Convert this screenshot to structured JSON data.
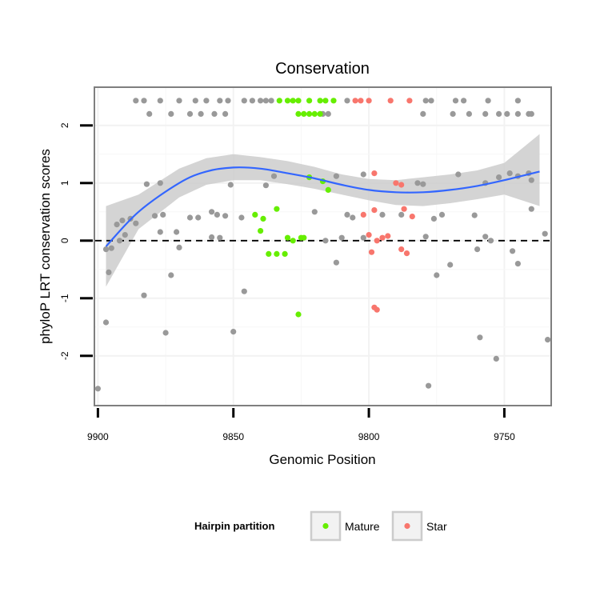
{
  "chart_data": {
    "type": "scatter",
    "title": "Conservation",
    "xlabel": "Genomic Position",
    "ylabel": "phyloP LRT conservation scores",
    "xlim": [
      9901,
      9733
    ],
    "ylim": [
      -2.85,
      2.65
    ],
    "x_reversed": true,
    "x_ticks": [
      9900,
      9850,
      9800,
      9750
    ],
    "y_ticks": [
      -2,
      -1,
      0,
      1,
      2
    ],
    "reference_line": {
      "y": 0,
      "style": "dashed"
    },
    "smooth": {
      "x": [
        9897,
        9885,
        9870,
        9860,
        9850,
        9840,
        9830,
        9820,
        9810,
        9800,
        9790,
        9780,
        9770,
        9760,
        9750,
        9737
      ],
      "y": [
        -0.1,
        0.5,
        1.0,
        1.2,
        1.27,
        1.25,
        1.17,
        1.08,
        0.97,
        0.88,
        0.84,
        0.84,
        0.88,
        0.95,
        1.05,
        1.2
      ],
      "lower": [
        -0.8,
        0.2,
        0.75,
        0.97,
        1.05,
        1.05,
        0.98,
        0.9,
        0.8,
        0.7,
        0.62,
        0.6,
        0.65,
        0.72,
        0.8,
        0.6
      ],
      "upper": [
        0.6,
        0.8,
        1.25,
        1.43,
        1.5,
        1.45,
        1.38,
        1.28,
        1.15,
        1.07,
        1.05,
        1.1,
        1.15,
        1.22,
        1.35,
        1.85
      ],
      "color": "#3366ff",
      "band_color": "#cccccc"
    },
    "series": [
      {
        "name": "",
        "color": "#999999",
        "points": [
          [
            9886,
            2.43
          ],
          [
            9883,
            2.43
          ],
          [
            9877,
            2.43
          ],
          [
            9870,
            2.43
          ],
          [
            9864,
            2.43
          ],
          [
            9860,
            2.43
          ],
          [
            9855,
            2.43
          ],
          [
            9852,
            2.43
          ],
          [
            9846,
            2.43
          ],
          [
            9843,
            2.43
          ],
          [
            9840,
            2.43
          ],
          [
            9838,
            2.43
          ],
          [
            9836,
            2.43
          ],
          [
            9808,
            2.43
          ],
          [
            9779,
            2.43
          ],
          [
            9777,
            2.43
          ],
          [
            9768,
            2.43
          ],
          [
            9765,
            2.43
          ],
          [
            9756,
            2.43
          ],
          [
            9745,
            2.43
          ],
          [
            9881,
            2.2
          ],
          [
            9873,
            2.2
          ],
          [
            9866,
            2.2
          ],
          [
            9862,
            2.2
          ],
          [
            9857,
            2.2
          ],
          [
            9853,
            2.2
          ],
          [
            9817,
            2.2
          ],
          [
            9815,
            2.2
          ],
          [
            9780,
            2.2
          ],
          [
            9769,
            2.2
          ],
          [
            9763,
            2.2
          ],
          [
            9757,
            2.2
          ],
          [
            9752,
            2.2
          ],
          [
            9749,
            2.2
          ],
          [
            9745,
            2.2
          ],
          [
            9741,
            2.2
          ],
          [
            9740,
            2.2
          ],
          [
            9877,
            1.0
          ],
          [
            9882,
            0.98
          ],
          [
            9851,
            0.97
          ],
          [
            9838,
            0.96
          ],
          [
            9812,
            1.12
          ],
          [
            9780,
            0.98
          ],
          [
            9782,
            1.0
          ],
          [
            9767,
            1.15
          ],
          [
            9757,
            1.0
          ],
          [
            9752,
            1.1
          ],
          [
            9748,
            1.17
          ],
          [
            9745,
            1.12
          ],
          [
            9741,
            1.17
          ],
          [
            9740,
            1.05
          ],
          [
            9835,
            1.12
          ],
          [
            9802,
            1.15
          ],
          [
            9891,
            0.35
          ],
          [
            9888,
            0.38
          ],
          [
            9886,
            0.3
          ],
          [
            9893,
            0.28
          ],
          [
            9879,
            0.43
          ],
          [
            9876,
            0.45
          ],
          [
            9866,
            0.4
          ],
          [
            9863,
            0.4
          ],
          [
            9858,
            0.5
          ],
          [
            9856,
            0.45
          ],
          [
            9853,
            0.43
          ],
          [
            9847,
            0.4
          ],
          [
            9820,
            0.5
          ],
          [
            9808,
            0.45
          ],
          [
            9806,
            0.4
          ],
          [
            9795,
            0.45
          ],
          [
            9788,
            0.45
          ],
          [
            9776,
            0.38
          ],
          [
            9773,
            0.45
          ],
          [
            9761,
            0.44
          ],
          [
            9740,
            0.55
          ],
          [
            9890,
            0.1
          ],
          [
            9877,
            0.15
          ],
          [
            9871,
            0.15
          ],
          [
            9858,
            0.06
          ],
          [
            9855,
            0.05
          ],
          [
            9816,
            0.0
          ],
          [
            9810,
            0.05
          ],
          [
            9802,
            0.05
          ],
          [
            9779,
            0.07
          ],
          [
            9757,
            0.07
          ],
          [
            9755,
            0.0
          ],
          [
            9735,
            0.12
          ],
          [
            9892,
            0.0
          ],
          [
            9897,
            -0.15
          ],
          [
            9895,
            -0.13
          ],
          [
            9870,
            -0.12
          ],
          [
            9760,
            -0.15
          ],
          [
            9747,
            -0.18
          ],
          [
            9812,
            -0.38
          ],
          [
            9775,
            -0.6
          ],
          [
            9770,
            -0.42
          ],
          [
            9745,
            -0.4
          ],
          [
            9896,
            -0.55
          ],
          [
            9873,
            -0.6
          ],
          [
            9883,
            -0.95
          ],
          [
            9846,
            -0.88
          ],
          [
            9897,
            -1.42
          ],
          [
            9875,
            -1.6
          ],
          [
            9850,
            -1.58
          ],
          [
            9759,
            -1.68
          ],
          [
            9753,
            -2.05
          ],
          [
            9734,
            -1.72
          ],
          [
            9778,
            -2.52
          ],
          [
            9900,
            -2.57
          ]
        ]
      },
      {
        "name": "Mature",
        "color": "#66ee00",
        "points": [
          [
            9833,
            2.43
          ],
          [
            9830,
            2.43
          ],
          [
            9828,
            2.43
          ],
          [
            9826,
            2.43
          ],
          [
            9822,
            2.43
          ],
          [
            9818,
            2.43
          ],
          [
            9816,
            2.43
          ],
          [
            9813,
            2.43
          ],
          [
            9826,
            2.2
          ],
          [
            9824,
            2.2
          ],
          [
            9822,
            2.2
          ],
          [
            9820,
            2.2
          ],
          [
            9818,
            2.2
          ],
          [
            9822,
            1.1
          ],
          [
            9817,
            1.03
          ],
          [
            9815,
            0.88
          ],
          [
            9834,
            0.55
          ],
          [
            9842,
            0.45
          ],
          [
            9839,
            0.38
          ],
          [
            9840,
            0.17
          ],
          [
            9830,
            0.05
          ],
          [
            9825,
            0.05
          ],
          [
            9824,
            0.05
          ],
          [
            9828,
            0.0
          ],
          [
            9837,
            -0.23
          ],
          [
            9834,
            -0.23
          ],
          [
            9831,
            -0.23
          ],
          [
            9826,
            -1.28
          ]
        ]
      },
      {
        "name": "Star",
        "color": "#f8766d",
        "points": [
          [
            9805,
            2.43
          ],
          [
            9803,
            2.43
          ],
          [
            9800,
            2.43
          ],
          [
            9792,
            2.43
          ],
          [
            9785,
            2.43
          ],
          [
            9798,
            1.17
          ],
          [
            9790,
            1.0
          ],
          [
            9788,
            0.97
          ],
          [
            9787,
            0.55
          ],
          [
            9784,
            0.42
          ],
          [
            9793,
            0.08
          ],
          [
            9795,
            0.05
          ],
          [
            9797,
            0.0
          ],
          [
            9802,
            0.45
          ],
          [
            9798,
            0.53
          ],
          [
            9800,
            0.1
          ],
          [
            9788,
            -0.15
          ],
          [
            9786,
            -0.22
          ],
          [
            9799,
            -0.2
          ],
          [
            9798,
            -1.16
          ],
          [
            9797,
            -1.2
          ]
        ]
      }
    ],
    "legend": {
      "title": "Hairpin partition",
      "position": "bottom",
      "items": [
        {
          "label": "Mature",
          "color": "#66ee00"
        },
        {
          "label": "Star",
          "color": "#f8766d"
        }
      ]
    }
  }
}
